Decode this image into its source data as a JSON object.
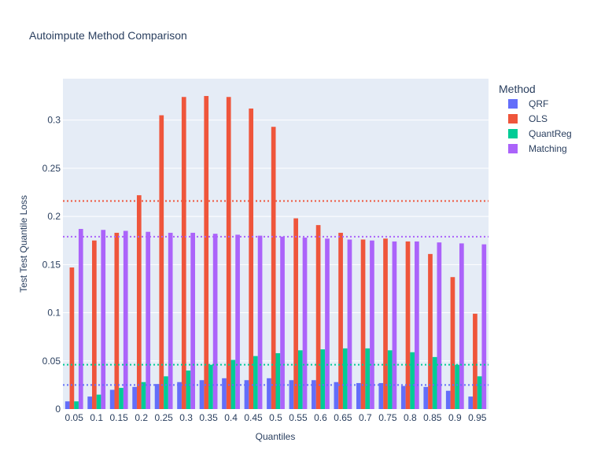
{
  "chart_data": {
    "type": "bar",
    "title": "Autoimpute Method Comparison",
    "xlabel": "Quantiles",
    "ylabel": "Test Test Quantile Loss",
    "ylim": [
      0,
      0.343
    ],
    "yticks": [
      "0",
      "0.05",
      "0.1",
      "0.15",
      "0.2",
      "0.25",
      "0.3"
    ],
    "grid": true,
    "legend_title": "Method",
    "legend_position": "right",
    "categories": [
      "0.05",
      "0.1",
      "0.15",
      "0.2",
      "0.25",
      "0.3",
      "0.35",
      "0.4",
      "0.45",
      "0.5",
      "0.55",
      "0.6",
      "0.65",
      "0.7",
      "0.75",
      "0.8",
      "0.85",
      "0.9",
      "0.95"
    ],
    "series": [
      {
        "name": "QRF",
        "color": "#636efa",
        "values": [
          0.008,
          0.013,
          0.02,
          0.023,
          0.026,
          0.028,
          0.03,
          0.032,
          0.03,
          0.032,
          0.03,
          0.03,
          0.028,
          0.027,
          0.027,
          0.024,
          0.023,
          0.019,
          0.013
        ],
        "mean": 0.025
      },
      {
        "name": "OLS",
        "color": "#ef553b",
        "values": [
          0.147,
          0.175,
          0.183,
          0.222,
          0.305,
          0.324,
          0.325,
          0.324,
          0.312,
          0.293,
          0.198,
          0.191,
          0.183,
          0.176,
          0.177,
          0.174,
          0.161,
          0.137,
          0.099
        ],
        "mean": 0.216
      },
      {
        "name": "QuantReg",
        "color": "#00cc96",
        "values": [
          0.008,
          0.015,
          0.022,
          0.028,
          0.034,
          0.04,
          0.046,
          0.051,
          0.055,
          0.058,
          0.061,
          0.062,
          0.063,
          0.063,
          0.061,
          0.059,
          0.054,
          0.046,
          0.034
        ],
        "mean": 0.046
      },
      {
        "name": "Matching",
        "color": "#ab63fa",
        "values": [
          0.187,
          0.186,
          0.185,
          0.184,
          0.183,
          0.183,
          0.182,
          0.181,
          0.18,
          0.179,
          0.178,
          0.177,
          0.176,
          0.175,
          0.174,
          0.174,
          0.173,
          0.172,
          0.171
        ],
        "mean": 0.179
      }
    ]
  }
}
